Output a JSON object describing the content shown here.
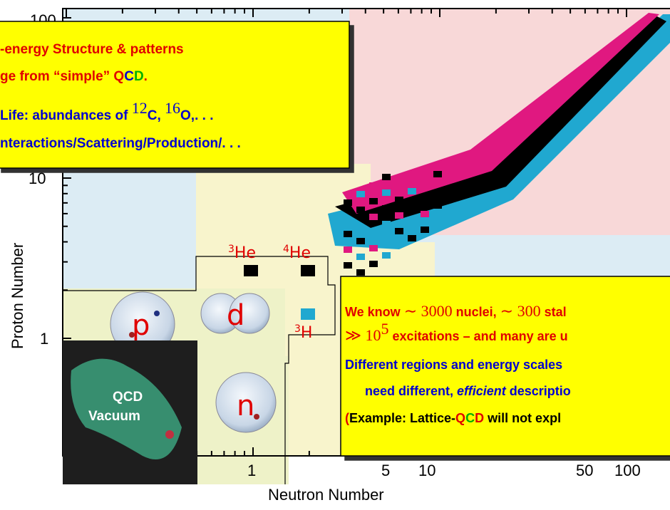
{
  "axes": {
    "y_label": "Proton Number",
    "x_label": "Neutron Number",
    "y_ticks": [
      "100",
      "10",
      "1"
    ],
    "x_ticks": [
      "1",
      "5",
      "10",
      "50",
      "100"
    ]
  },
  "top_box": {
    "lines": [
      [
        "-energy Structure & patterns"
      ],
      [
        "ge from “simple” ",
        "Q",
        "C",
        "D",
        "."
      ],
      [
        "Life: abundances of ",
        "12",
        "C, ",
        "16",
        "O,. . ."
      ],
      [
        "nteractions/Scattering/Production/. . ."
      ]
    ]
  },
  "bottom_box": {
    "lines": [
      [
        "We know ",
        "∼ 3000",
        " nuclei, ",
        "∼ 300",
        " stal"
      ],
      [
        "≫ 10",
        "5",
        " excitations – and many are u"
      ],
      [
        "Different regions and energy scales"
      ],
      [
        "need different, ",
        "efficient",
        " descriptio"
      ],
      [
        "(",
        "Example: Lattice-",
        "Q",
        "C",
        "D",
        " will not expl"
      ]
    ]
  },
  "labels": {
    "he3": [
      "3",
      "He"
    ],
    "he4": [
      "4",
      "He"
    ],
    "h3": [
      "3",
      "H"
    ],
    "proton": "p",
    "deuteron": "d",
    "neutron": "n",
    "vacuum": [
      "QCD",
      "Vacuum"
    ]
  }
}
